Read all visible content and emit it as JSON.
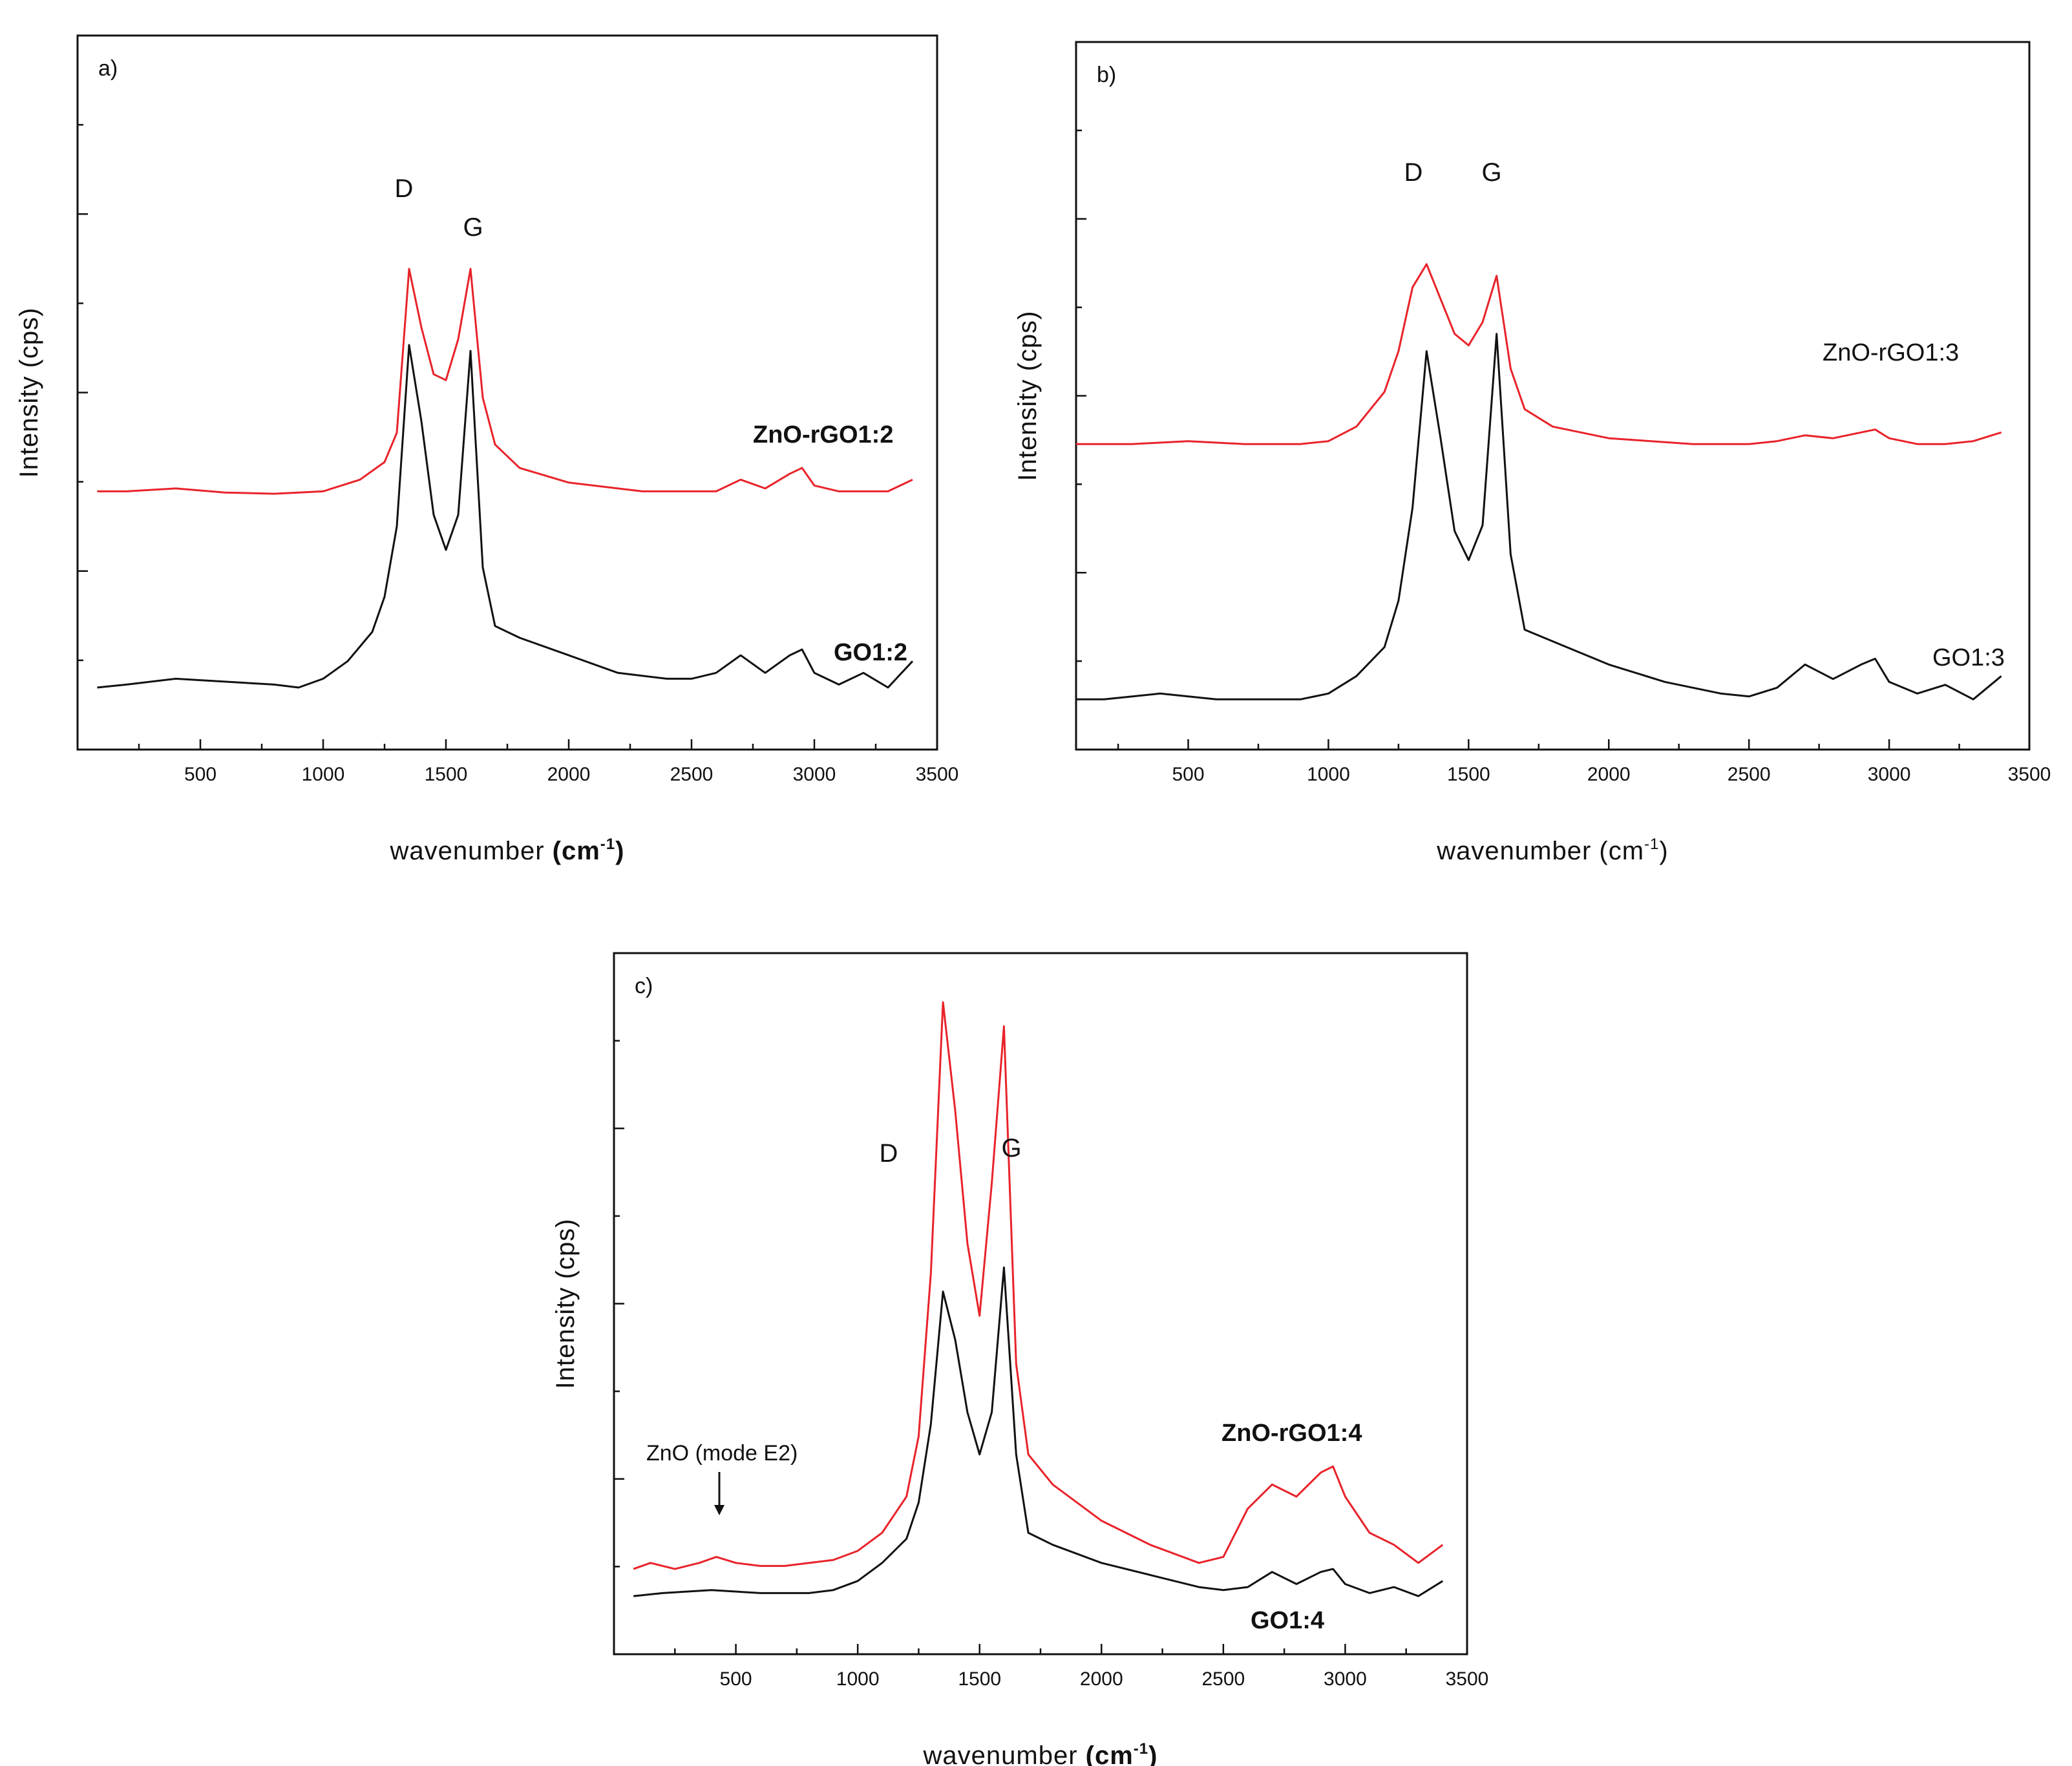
{
  "chart_data": [
    {
      "type": "line",
      "panel_label": "a)",
      "xlabel": "wavenumber",
      "xlabel_unit": "cm",
      "xlabel_sup": "-1",
      "xlabel_unit_bold": true,
      "ylabel": "Intensity (cps)",
      "xlim": [
        0,
        3500
      ],
      "x_ticks": [
        500,
        1000,
        1500,
        2000,
        2500,
        3000,
        3500
      ],
      "ylim": [
        0,
        100
      ],
      "y_tick_labels_shown": false,
      "series": [
        {
          "name": "ZnO-rGO1:2",
          "color": "#e8232a",
          "label_bold": true,
          "x": [
            80,
            200,
            400,
            600,
            800,
            1000,
            1150,
            1250,
            1300,
            1350,
            1400,
            1450,
            1500,
            1550,
            1600,
            1650,
            1700,
            1800,
            2000,
            2300,
            2500,
            2600,
            2700,
            2800,
            2900,
            2950,
            3000,
            3100,
            3200,
            3300,
            3400
          ],
          "y": [
            38,
            38,
            38.5,
            37.8,
            37.6,
            38,
            40,
            43,
            48,
            76,
            66,
            58,
            57,
            64,
            76,
            54,
            46,
            42,
            39.5,
            38,
            38,
            38,
            40,
            38.5,
            41,
            42,
            39,
            38,
            38,
            38,
            40
          ]
        },
        {
          "name": "GO1:2",
          "color": "#111111",
          "label_bold": true,
          "x": [
            80,
            200,
            400,
            600,
            800,
            900,
            1000,
            1100,
            1200,
            1250,
            1300,
            1350,
            1400,
            1450,
            1500,
            1550,
            1600,
            1650,
            1700,
            1800,
            2000,
            2200,
            2400,
            2500,
            2600,
            2700,
            2800,
            2900,
            2950,
            3000,
            3100,
            3200,
            3300,
            3400
          ],
          "y": [
            4.5,
            5,
            6,
            5.5,
            5,
            4.5,
            6,
            9,
            14,
            20,
            32,
            63,
            50,
            34,
            28,
            34,
            62,
            25,
            15,
            13,
            10,
            7,
            6,
            6,
            7,
            10,
            7,
            10,
            11,
            7,
            5,
            7,
            4.5,
            9
          ]
        }
      ],
      "annotations": [
        {
          "text": "D",
          "x": 1350
        },
        {
          "text": "G",
          "x": 1600
        }
      ]
    },
    {
      "type": "line",
      "panel_label": "b)",
      "xlabel": "wavenumber",
      "xlabel_unit": "(cm",
      "xlabel_sup": "-1",
      "xlabel_close": ")",
      "xlabel_unit_bold": false,
      "ylabel": "Intensity (cps)",
      "xlim": [
        100,
        3500
      ],
      "x_ticks": [
        500,
        1000,
        1500,
        2000,
        2500,
        3000,
        3500
      ],
      "ylim": [
        0,
        100
      ],
      "y_tick_labels_shown": false,
      "series": [
        {
          "name": "ZnO-rGO1:3",
          "color": "#e8232a",
          "label_bold": false,
          "x": [
            100,
            300,
            500,
            700,
            900,
            1000,
            1100,
            1200,
            1250,
            1300,
            1350,
            1400,
            1450,
            1500,
            1550,
            1600,
            1650,
            1700,
            1800,
            2000,
            2300,
            2500,
            2600,
            2700,
            2800,
            2900,
            2950,
            3000,
            3100,
            3200,
            3300,
            3400
          ],
          "y": [
            49,
            49,
            49.5,
            49,
            49,
            49.5,
            52,
            58,
            65,
            76,
            80,
            74,
            68,
            66,
            70,
            78,
            62,
            55,
            52,
            50,
            49,
            49,
            49.5,
            50.5,
            50,
            51,
            51.5,
            50,
            49,
            49,
            49.5,
            51
          ]
        },
        {
          "name": "GO1:3",
          "color": "#111111",
          "label_bold": false,
          "x": [
            100,
            200,
            400,
            600,
            800,
            900,
            1000,
            1100,
            1200,
            1250,
            1300,
            1350,
            1400,
            1450,
            1500,
            1550,
            1600,
            1650,
            1700,
            1800,
            2000,
            2200,
            2400,
            2500,
            2600,
            2700,
            2800,
            2900,
            2950,
            3000,
            3100,
            3200,
            3300,
            3400
          ],
          "y": [
            5,
            5,
            6,
            5,
            5,
            5,
            6,
            9,
            14,
            22,
            38,
            65,
            50,
            34,
            29,
            35,
            68,
            30,
            17,
            15,
            11,
            8,
            6,
            5.5,
            7,
            11,
            8.5,
            11,
            12,
            8,
            6,
            7.5,
            5,
            9
          ]
        }
      ],
      "annotations": [
        {
          "text": "D",
          "x": 1350
        },
        {
          "text": "G",
          "x": 1600
        }
      ]
    },
    {
      "type": "line",
      "panel_label": "c)",
      "xlabel": "wavenumber",
      "xlabel_unit": "(cm",
      "xlabel_sup": "-1",
      "xlabel_close": ")",
      "xlabel_unit_bold": true,
      "ylabel": "Intensity (cps)",
      "xlim": [
        0,
        3500
      ],
      "x_ticks": [
        500,
        1000,
        1500,
        2000,
        2500,
        3000,
        3500
      ],
      "ylim": [
        0,
        100
      ],
      "y_tick_labels_shown": false,
      "series": [
        {
          "name": "ZnO-rGO1:4",
          "color": "#e8232a",
          "label_bold": true,
          "x": [
            80,
            150,
            250,
            350,
            420,
            500,
            600,
            700,
            800,
            900,
            1000,
            1100,
            1200,
            1250,
            1300,
            1350,
            1400,
            1450,
            1500,
            1550,
            1600,
            1650,
            1700,
            1800,
            2000,
            2200,
            2400,
            2500,
            2600,
            2700,
            2800,
            2900,
            2950,
            3000,
            3100,
            3200,
            3300,
            3400
          ],
          "y": [
            6,
            7,
            6,
            7,
            8,
            7,
            6.5,
            6.5,
            7,
            7.5,
            9,
            12,
            18,
            28,
            55,
            100,
            82,
            60,
            48,
            70,
            96,
            40,
            25,
            20,
            14,
            10,
            7,
            8,
            16,
            20,
            18,
            22,
            23,
            18,
            12,
            10,
            7,
            10
          ]
        },
        {
          "name": "GO1:4",
          "color": "#111111",
          "label_bold": true,
          "x": [
            80,
            200,
            400,
            600,
            800,
            900,
            1000,
            1100,
            1200,
            1250,
            1300,
            1350,
            1400,
            1450,
            1500,
            1550,
            1600,
            1650,
            1700,
            1800,
            2000,
            2200,
            2400,
            2500,
            2600,
            2700,
            2800,
            2900,
            2950,
            3000,
            3100,
            3200,
            3300,
            3400
          ],
          "y": [
            1.5,
            2,
            2.5,
            2,
            2,
            2.5,
            4,
            7,
            11,
            17,
            30,
            52,
            44,
            32,
            25,
            32,
            56,
            25,
            12,
            10,
            7,
            5,
            3,
            2.5,
            3,
            5.5,
            3.5,
            5.5,
            6,
            3.5,
            2,
            3,
            1.5,
            4
          ]
        }
      ],
      "annotations": [
        {
          "text": "D",
          "x": 1350
        },
        {
          "text": "G",
          "x": 1600
        },
        {
          "text": "ZnO (mode E2)",
          "x": 437,
          "arrow_to_x": 437
        }
      ]
    }
  ]
}
